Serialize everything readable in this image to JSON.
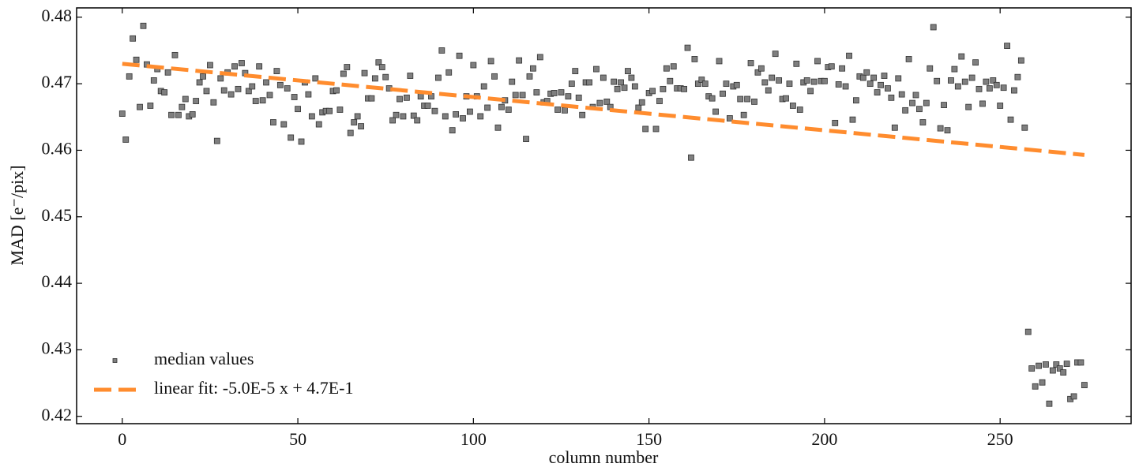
{
  "chart_data": {
    "type": "scatter",
    "xlabel": "column number",
    "ylabel": "MAD [e⁻/pix]",
    "xlim": [
      -13,
      287.3
    ],
    "ylim": [
      0.4189,
      0.4814
    ],
    "xticks": [
      0,
      50,
      100,
      150,
      200,
      250
    ],
    "yticks": [
      0.42,
      0.43,
      0.44,
      0.45,
      0.46,
      0.47,
      0.48
    ],
    "legend": "lower left",
    "series": [
      {
        "name": "median values",
        "type": "scatter",
        "color": "#7f7f7f",
        "x": [
          0,
          1,
          2,
          3,
          4,
          5,
          6,
          7,
          8,
          9,
          10,
          11,
          12,
          13,
          14,
          15,
          16,
          17,
          18,
          19,
          20,
          21,
          22,
          23,
          24,
          25,
          26,
          27,
          28,
          29,
          30,
          31,
          32,
          33,
          34,
          35,
          36,
          37,
          38,
          39,
          40,
          41,
          42,
          43,
          44,
          45,
          46,
          47,
          48,
          49,
          50,
          51,
          52,
          53,
          54,
          55,
          56,
          57,
          58,
          59,
          60,
          61,
          62,
          63,
          64,
          65,
          66,
          67,
          68,
          69,
          70,
          71,
          72,
          73,
          74,
          75,
          76,
          77,
          78,
          79,
          80,
          81,
          82,
          83,
          84,
          85,
          86,
          87,
          88,
          89,
          90,
          91,
          92,
          93,
          94,
          95,
          96,
          97,
          98,
          99,
          100,
          101,
          102,
          103,
          104,
          105,
          106,
          107,
          108,
          109,
          110,
          111,
          112,
          113,
          114,
          115,
          116,
          117,
          118,
          119,
          120,
          121,
          122,
          123,
          124,
          125,
          126,
          127,
          128,
          129,
          130,
          131,
          132,
          133,
          134,
          135,
          136,
          137,
          138,
          139,
          140,
          141,
          142,
          143,
          144,
          145,
          146,
          147,
          148,
          149,
          150,
          151,
          152,
          153,
          154,
          155,
          156,
          157,
          158,
          159,
          160,
          161,
          162,
          163,
          164,
          165,
          166,
          167,
          168,
          169,
          170,
          171,
          172,
          173,
          174,
          175,
          176,
          177,
          178,
          179,
          180,
          181,
          182,
          183,
          184,
          185,
          186,
          187,
          188,
          189,
          190,
          191,
          192,
          193,
          194,
          195,
          196,
          197,
          198,
          199,
          200,
          201,
          202,
          203,
          204,
          205,
          206,
          207,
          208,
          209,
          210,
          211,
          212,
          213,
          214,
          215,
          216,
          217,
          218,
          219,
          220,
          221,
          222,
          223,
          224,
          225,
          226,
          227,
          228,
          229,
          230,
          231,
          232,
          233,
          234,
          235,
          236,
          237,
          238,
          239,
          240,
          241,
          242,
          243,
          244,
          245,
          246,
          247,
          248,
          249,
          250,
          251,
          252,
          253,
          254,
          255,
          256,
          257,
          258,
          259,
          260,
          261,
          262,
          263,
          264,
          265,
          266,
          267,
          268,
          269,
          270,
          271,
          272,
          273,
          274
        ],
        "values": [
          0.4655,
          0.4616,
          0.4711,
          0.4768,
          0.4736,
          0.4665,
          0.4787,
          0.4729,
          0.4667,
          0.4705,
          0.4722,
          0.4689,
          0.4687,
          0.4717,
          0.4653,
          0.4743,
          0.4653,
          0.4665,
          0.4677,
          0.4651,
          0.4654,
          0.4674,
          0.4702,
          0.4711,
          0.4689,
          0.4728,
          0.4672,
          0.4614,
          0.4708,
          0.469,
          0.4717,
          0.4684,
          0.4726,
          0.4692,
          0.4731,
          0.4716,
          0.4689,
          0.4696,
          0.4674,
          0.4726,
          0.4675,
          0.4702,
          0.4683,
          0.4642,
          0.4719,
          0.4698,
          0.4639,
          0.4693,
          0.4619,
          0.468,
          0.4662,
          0.4613,
          0.4702,
          0.4684,
          0.4651,
          0.4708,
          0.4639,
          0.4657,
          0.4659,
          0.4659,
          0.4689,
          0.469,
          0.4661,
          0.4715,
          0.4725,
          0.4626,
          0.4642,
          0.4651,
          0.4636,
          0.4716,
          0.4678,
          0.4678,
          0.4708,
          0.4732,
          0.4725,
          0.471,
          0.4693,
          0.4645,
          0.4653,
          0.4677,
          0.4651,
          0.4679,
          0.4712,
          0.4652,
          0.4645,
          0.4681,
          0.4667,
          0.4667,
          0.4681,
          0.4659,
          0.4709,
          0.475,
          0.4651,
          0.4717,
          0.463,
          0.4654,
          0.4742,
          0.4648,
          0.4681,
          0.4658,
          0.4728,
          0.4681,
          0.4651,
          0.4696,
          0.4664,
          0.4734,
          0.4711,
          0.4634,
          0.4665,
          0.4675,
          0.4661,
          0.4703,
          0.4683,
          0.4735,
          0.4683,
          0.4617,
          0.4711,
          0.4723,
          0.4687,
          0.474,
          0.4672,
          0.4674,
          0.4685,
          0.4686,
          0.4661,
          0.4687,
          0.466,
          0.4681,
          0.47,
          0.4719,
          0.4679,
          0.4653,
          0.4702,
          0.4702,
          0.4665,
          0.4722,
          0.4671,
          0.4709,
          0.4673,
          0.4665,
          0.4703,
          0.4692,
          0.4702,
          0.4694,
          0.4719,
          0.4709,
          0.4696,
          0.4664,
          0.4672,
          0.4632,
          0.4686,
          0.4689,
          0.4632,
          0.4674,
          0.4692,
          0.4723,
          0.4704,
          0.4726,
          0.4693,
          0.4693,
          0.4692,
          0.4754,
          0.4589,
          0.4737,
          0.47,
          0.4706,
          0.47,
          0.4681,
          0.4678,
          0.4658,
          0.4734,
          0.4685,
          0.47,
          0.4648,
          0.4696,
          0.4698,
          0.4677,
          0.4653,
          0.4677,
          0.4731,
          0.4673,
          0.4717,
          0.4723,
          0.4702,
          0.469,
          0.4709,
          0.4745,
          0.4705,
          0.4677,
          0.4678,
          0.47,
          0.4667,
          0.473,
          0.4661,
          0.4702,
          0.4705,
          0.4689,
          0.4703,
          0.4734,
          0.4704,
          0.4704,
          0.4725,
          0.4726,
          0.4641,
          0.4699,
          0.4723,
          0.4696,
          0.4742,
          0.4646,
          0.4675,
          0.4711,
          0.4709,
          0.4717,
          0.47,
          0.4709,
          0.4687,
          0.4698,
          0.4712,
          0.4693,
          0.4679,
          0.4634,
          0.4708,
          0.4684,
          0.466,
          0.4737,
          0.4671,
          0.4683,
          0.4662,
          0.4642,
          0.4671,
          0.4723,
          0.4785,
          0.4704,
          0.4633,
          0.4668,
          0.463,
          0.4705,
          0.4722,
          0.4696,
          0.4741,
          0.4703,
          0.4665,
          0.4709,
          0.4732,
          0.4692,
          0.467,
          0.4703,
          0.4693,
          0.4705,
          0.4698,
          0.4667,
          0.4694,
          0.4757,
          0.4646,
          0.469,
          0.471,
          0.4735,
          0.4634,
          0.4327,
          0.4272,
          0.4245,
          0.4276,
          0.4251,
          0.4278,
          0.4219,
          0.4269,
          0.4278,
          0.4272,
          0.4266,
          0.4279,
          0.4226,
          0.423,
          0.4281,
          0.4281,
          0.4247
        ]
      },
      {
        "name": "linear fit: -5.0E-5 x + 4.7E-1",
        "type": "line",
        "color": "#ff8c2e",
        "x": [
          0,
          274
        ],
        "values": [
          0.473,
          0.4593
        ]
      }
    ]
  }
}
